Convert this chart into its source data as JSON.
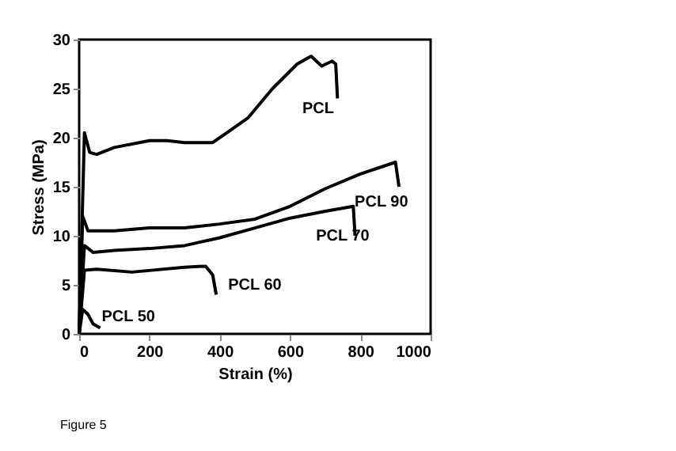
{
  "chart_data": {
    "type": "line",
    "xlabel": "Strain (%)",
    "ylabel": "Stress (MPa)",
    "xlim": [
      0,
      1000
    ],
    "ylim": [
      0,
      30
    ],
    "xticks": [
      0,
      200,
      400,
      600,
      800,
      1000
    ],
    "yticks": [
      0,
      5,
      10,
      15,
      20,
      25,
      30
    ],
    "grid": false,
    "marker": "none",
    "line_style": "solid",
    "series": [
      {
        "name": "PCL",
        "color": "#000000",
        "x": [
          0,
          15,
          30,
          50,
          100,
          200,
          250,
          300,
          380,
          420,
          480,
          550,
          620,
          660,
          690,
          720,
          730,
          735
        ],
        "values": [
          0,
          20.5,
          18.5,
          18.3,
          19,
          19.7,
          19.7,
          19.5,
          19.5,
          20.5,
          22,
          25,
          27.5,
          28.3,
          27.3,
          27.8,
          27.5,
          24
        ]
      },
      {
        "name": "PCL 90",
        "color": "#000000",
        "x": [
          0,
          10,
          25,
          100,
          200,
          300,
          400,
          500,
          600,
          700,
          800,
          900,
          910
        ],
        "values": [
          0,
          12,
          10.5,
          10.5,
          10.8,
          10.8,
          11.2,
          11.7,
          13,
          14.8,
          16.3,
          17.5,
          15
        ]
      },
      {
        "name": "PCL 70",
        "color": "#000000",
        "x": [
          0,
          15,
          40,
          100,
          200,
          300,
          400,
          500,
          600,
          700,
          780,
          785
        ],
        "values": [
          0,
          9,
          8.3,
          8.5,
          8.7,
          9,
          9.8,
          10.8,
          11.8,
          12.5,
          13,
          10
        ]
      },
      {
        "name": "PCL 60",
        "color": "#000000",
        "x": [
          0,
          15,
          50,
          150,
          300,
          360,
          380,
          390
        ],
        "values": [
          0,
          6.5,
          6.6,
          6.3,
          6.8,
          6.9,
          6,
          4
        ]
      },
      {
        "name": "PCL 50",
        "color": "#000000",
        "x": [
          0,
          10,
          25,
          40,
          60
        ],
        "values": [
          0,
          2.5,
          2,
          1,
          0.6
        ]
      }
    ],
    "annotations": [
      "Figure 5"
    ]
  }
}
